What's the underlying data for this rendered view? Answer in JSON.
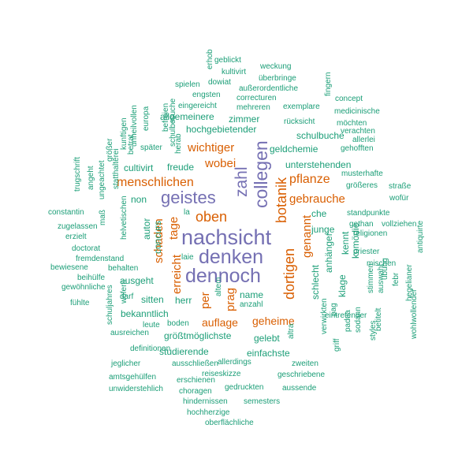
{
  "colors": {
    "purple": "#7570b3",
    "orange": "#d95f02",
    "teal": "#1b9e77"
  },
  "words": [
    {
      "text": "nachsicht",
      "color": "purple",
      "weight": 3
    },
    {
      "text": "collegen",
      "color": "purple",
      "weight": 3
    },
    {
      "text": "denken",
      "color": "purple",
      "weight": 3
    },
    {
      "text": "dennoch",
      "color": "purple",
      "weight": 3
    },
    {
      "text": "geistes",
      "color": "purple",
      "weight": 3
    },
    {
      "text": "zahl",
      "color": "purple",
      "weight": 3
    },
    {
      "text": "botanik",
      "color": "orange",
      "weight": 2
    },
    {
      "text": "dortigen",
      "color": "orange",
      "weight": 2
    },
    {
      "text": "oben",
      "color": "orange",
      "weight": 2
    },
    {
      "text": "menschlichen",
      "color": "orange",
      "weight": 2
    },
    {
      "text": "wichtiger",
      "color": "orange",
      "weight": 2
    },
    {
      "text": "wobei",
      "color": "orange",
      "weight": 2
    },
    {
      "text": "pflanze",
      "color": "orange",
      "weight": 2
    },
    {
      "text": "gebrauche",
      "color": "orange",
      "weight": 2
    },
    {
      "text": "genannt",
      "color": "orange",
      "weight": 2
    },
    {
      "text": "tage",
      "color": "orange",
      "weight": 2
    },
    {
      "text": "schaden",
      "color": "orange",
      "weight": 2
    },
    {
      "text": "erreicht",
      "color": "orange",
      "weight": 2
    },
    {
      "text": "per",
      "color": "orange",
      "weight": 2
    },
    {
      "text": "prag",
      "color": "orange",
      "weight": 2
    },
    {
      "text": "auflage",
      "color": "orange",
      "weight": 2
    },
    {
      "text": "geheime",
      "color": "orange",
      "weight": 2
    },
    {
      "text": "erhob",
      "color": "teal",
      "weight": 1
    },
    {
      "text": "geblickt",
      "color": "teal",
      "weight": 1
    },
    {
      "text": "kultivirt",
      "color": "teal",
      "weight": 1
    },
    {
      "text": "weckung",
      "color": "teal",
      "weight": 1
    },
    {
      "text": "dowiat",
      "color": "teal",
      "weight": 1
    },
    {
      "text": "überbringe",
      "color": "teal",
      "weight": 1
    },
    {
      "text": "spielen",
      "color": "teal",
      "weight": 1
    },
    {
      "text": "außerordentliche",
      "color": "teal",
      "weight": 1
    },
    {
      "text": "engsten",
      "color": "teal",
      "weight": 1
    },
    {
      "text": "correcturen",
      "color": "teal",
      "weight": 1
    },
    {
      "text": "fingern",
      "color": "teal",
      "weight": 1
    },
    {
      "text": "eingereicht",
      "color": "teal",
      "weight": 1
    },
    {
      "text": "mehreren",
      "color": "teal",
      "weight": 1
    },
    {
      "text": "exemplare",
      "color": "teal",
      "weight": 1
    },
    {
      "text": "concept",
      "color": "teal",
      "weight": 1
    },
    {
      "text": "schulbesuche",
      "color": "teal",
      "weight": 1
    },
    {
      "text": "unheilvollen",
      "color": "teal",
      "weight": 1
    },
    {
      "text": "europa",
      "color": "teal",
      "weight": 1
    },
    {
      "text": "befreien",
      "color": "teal",
      "weight": 1
    },
    {
      "text": "herab",
      "color": "teal",
      "weight": 1
    },
    {
      "text": "allgemeinere",
      "color": "teal",
      "weight": 1
    },
    {
      "text": "zimmer",
      "color": "teal",
      "weight": 1
    },
    {
      "text": "rücksicht",
      "color": "teal",
      "weight": 1
    },
    {
      "text": "medicinische",
      "color": "teal",
      "weight": 1
    },
    {
      "text": "möchten",
      "color": "teal",
      "weight": 1
    },
    {
      "text": "kunftigen",
      "color": "teal",
      "weight": 1
    },
    {
      "text": "hochgebietender",
      "color": "teal",
      "weight": 1
    },
    {
      "text": "verachten",
      "color": "teal",
      "weight": 1
    },
    {
      "text": "allerlei",
      "color": "teal",
      "weight": 1
    },
    {
      "text": "schulbuche",
      "color": "teal",
      "weight": 1
    },
    {
      "text": "trugschrift",
      "color": "teal",
      "weight": 1
    },
    {
      "text": "größer",
      "color": "teal",
      "weight": 1
    },
    {
      "text": "betrat",
      "color": "teal",
      "weight": 1
    },
    {
      "text": "später",
      "color": "teal",
      "weight": 1
    },
    {
      "text": "geldchemie",
      "color": "teal",
      "weight": 1
    },
    {
      "text": "gehofften",
      "color": "teal",
      "weight": 1
    },
    {
      "text": "angeht",
      "color": "teal",
      "weight": 1
    },
    {
      "text": "ungeachtet",
      "color": "teal",
      "weight": 1
    },
    {
      "text": "statthalterei",
      "color": "teal",
      "weight": 1
    },
    {
      "text": "cultivirt",
      "color": "teal",
      "weight": 1
    },
    {
      "text": "freude",
      "color": "teal",
      "weight": 1
    },
    {
      "text": "unterstehenden",
      "color": "teal",
      "weight": 1
    },
    {
      "text": "musterhafte",
      "color": "teal",
      "weight": 1
    },
    {
      "text": "größeres",
      "color": "teal",
      "weight": 1
    },
    {
      "text": "straße",
      "color": "teal",
      "weight": 1
    },
    {
      "text": "maß",
      "color": "teal",
      "weight": 1
    },
    {
      "text": "helvetischen",
      "color": "teal",
      "weight": 1
    },
    {
      "text": "non",
      "color": "teal",
      "weight": 1
    },
    {
      "text": "wofür",
      "color": "teal",
      "weight": 1
    },
    {
      "text": "constantin",
      "color": "teal",
      "weight": 1
    },
    {
      "text": "zugelassen",
      "color": "teal",
      "weight": 1
    },
    {
      "text": "la",
      "color": "teal",
      "weight": 1
    },
    {
      "text": "che",
      "color": "teal",
      "weight": 1
    },
    {
      "text": "standpunkte",
      "color": "teal",
      "weight": 1
    },
    {
      "text": "gethan",
      "color": "teal",
      "weight": 1
    },
    {
      "text": "vollziehen",
      "color": "teal",
      "weight": 1
    },
    {
      "text": "religionen",
      "color": "teal",
      "weight": 1
    },
    {
      "text": "erzielt",
      "color": "teal",
      "weight": 1
    },
    {
      "text": "autor",
      "color": "teal",
      "weight": 1
    },
    {
      "text": "concurs",
      "color": "teal",
      "weight": 1
    },
    {
      "text": "junge",
      "color": "teal",
      "weight": 1
    },
    {
      "text": "doctorat",
      "color": "teal",
      "weight": 1
    },
    {
      "text": "fremdenstand",
      "color": "teal",
      "weight": 1
    },
    {
      "text": "laie",
      "color": "teal",
      "weight": 1
    },
    {
      "text": "anhänger",
      "color": "teal",
      "weight": 1
    },
    {
      "text": "kennt",
      "color": "teal",
      "weight": 1
    },
    {
      "text": "komödie",
      "color": "teal",
      "weight": 1
    },
    {
      "text": "priester",
      "color": "teal",
      "weight": 1
    },
    {
      "text": "bewiesene",
      "color": "teal",
      "weight": 1
    },
    {
      "text": "behalten",
      "color": "teal",
      "weight": 1
    },
    {
      "text": "mischen",
      "color": "teal",
      "weight": 1
    },
    {
      "text": "antiquirte",
      "color": "teal",
      "weight": 1
    },
    {
      "text": "beihülfe",
      "color": "teal",
      "weight": 1
    },
    {
      "text": "ausgeht",
      "color": "teal",
      "weight": 1
    },
    {
      "text": "gewöhnliche",
      "color": "teal",
      "weight": 1
    },
    {
      "text": "klage",
      "color": "teal",
      "weight": 1
    },
    {
      "text": "schlecht",
      "color": "teal",
      "weight": 1
    },
    {
      "text": "übung",
      "color": "teal",
      "weight": 1
    },
    {
      "text": "name",
      "color": "teal",
      "weight": 1
    },
    {
      "text": "febr",
      "color": "teal",
      "weight": 1
    },
    {
      "text": "hegelianer",
      "color": "teal",
      "weight": 1
    },
    {
      "text": "fühlte",
      "color": "teal",
      "weight": 1
    },
    {
      "text": "darf",
      "color": "teal",
      "weight": 1
    },
    {
      "text": "sitten",
      "color": "teal",
      "weight": 1
    },
    {
      "text": "herr",
      "color": "teal",
      "weight": 1
    },
    {
      "text": "altem",
      "color": "teal",
      "weight": 1
    },
    {
      "text": "anzahl",
      "color": "teal",
      "weight": 1
    },
    {
      "text": "stimmen",
      "color": "teal",
      "weight": 1
    },
    {
      "text": "auswahl",
      "color": "teal",
      "weight": 1
    },
    {
      "text": "schuljahres",
      "color": "teal",
      "weight": 1
    },
    {
      "text": "wofern",
      "color": "teal",
      "weight": 1
    },
    {
      "text": "bekanntlich",
      "color": "teal",
      "weight": 1
    },
    {
      "text": "eintretender",
      "color": "teal",
      "weight": 1
    },
    {
      "text": "verwirkten",
      "color": "teal",
      "weight": 1
    },
    {
      "text": "pag",
      "color": "teal",
      "weight": 1
    },
    {
      "text": "wohlwollender",
      "color": "teal",
      "weight": 1
    },
    {
      "text": "leute",
      "color": "teal",
      "weight": 1
    },
    {
      "text": "boden",
      "color": "teal",
      "weight": 1
    },
    {
      "text": "ausreichen",
      "color": "teal",
      "weight": 1
    },
    {
      "text": "größtmöglichste",
      "color": "teal",
      "weight": 1
    },
    {
      "text": "gelebt",
      "color": "teal",
      "weight": 1
    },
    {
      "text": "padua",
      "color": "teal",
      "weight": 1
    },
    {
      "text": "sodann",
      "color": "teal",
      "weight": 1
    },
    {
      "text": "betitelt",
      "color": "teal",
      "weight": 1
    },
    {
      "text": "styles",
      "color": "teal",
      "weight": 1
    },
    {
      "text": "definitionen",
      "color": "teal",
      "weight": 1
    },
    {
      "text": "studierende",
      "color": "teal",
      "weight": 1
    },
    {
      "text": "einfachste",
      "color": "teal",
      "weight": 1
    },
    {
      "text": "griff",
      "color": "teal",
      "weight": 1
    },
    {
      "text": "jeglicher",
      "color": "teal",
      "weight": 1
    },
    {
      "text": "ausschließen",
      "color": "teal",
      "weight": 1
    },
    {
      "text": "allerdings",
      "color": "teal",
      "weight": 1
    },
    {
      "text": "zweiten",
      "color": "teal",
      "weight": 1
    },
    {
      "text": "reiseskizze",
      "color": "teal",
      "weight": 1
    },
    {
      "text": "amtsgehülfen",
      "color": "teal",
      "weight": 1
    },
    {
      "text": "erschienen",
      "color": "teal",
      "weight": 1
    },
    {
      "text": "geschriebene",
      "color": "teal",
      "weight": 1
    },
    {
      "text": "unwiderstehlich",
      "color": "teal",
      "weight": 1
    },
    {
      "text": "choragen",
      "color": "teal",
      "weight": 1
    },
    {
      "text": "gedruckten",
      "color": "teal",
      "weight": 1
    },
    {
      "text": "aussende",
      "color": "teal",
      "weight": 1
    },
    {
      "text": "hindernissen",
      "color": "teal",
      "weight": 1
    },
    {
      "text": "semesters",
      "color": "teal",
      "weight": 1
    },
    {
      "text": "hochherzige",
      "color": "teal",
      "weight": 1
    },
    {
      "text": "oberflächliche",
      "color": "teal",
      "weight": 1
    },
    {
      "text": "altra",
      "color": "teal",
      "weight": 1
    }
  ]
}
